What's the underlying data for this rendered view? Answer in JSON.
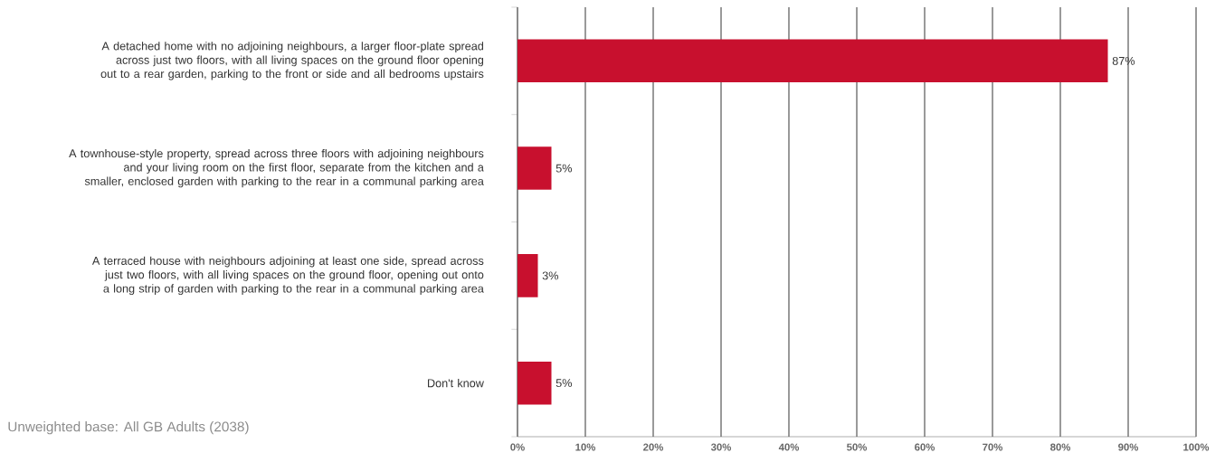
{
  "chart_data": {
    "type": "bar",
    "orientation": "horizontal",
    "categories": [
      "A detached home with no adjoining neighbours, a larger floor-plate spread across just two floors, with all living spaces on the ground floor opening out to a rear garden, parking to the front or side and all bedrooms upstairs",
      "A townhouse-style property, spread across three floors with adjoining neighbours and your living room on the first floor, separate from the kitchen and a smaller, enclosed garden with parking to the rear in a communal parking area",
      "A terraced house with neighbours adjoining at least one side, spread across just two floors, with all living spaces on the ground floor, opening out onto a long strip of garden with parking to the rear in a communal parking area",
      "Don't know"
    ],
    "values": [
      87,
      5,
      3,
      5
    ],
    "value_labels": [
      "87%",
      "5%",
      "3%",
      "5%"
    ],
    "color": "#c8102e",
    "xlim": [
      0,
      100
    ],
    "xticks": [
      {
        "value": 0,
        "label": "0%"
      },
      {
        "value": 10,
        "label": "10%"
      },
      {
        "value": 20,
        "label": "20%"
      },
      {
        "value": 30,
        "label": "30%"
      },
      {
        "value": 40,
        "label": "40%"
      },
      {
        "value": 50,
        "label": "50%"
      },
      {
        "value": 60,
        "label": "60%"
      },
      {
        "value": 70,
        "label": "70%"
      },
      {
        "value": 80,
        "label": "80%"
      },
      {
        "value": 90,
        "label": "90%"
      },
      {
        "value": 100,
        "label": "100%"
      }
    ],
    "grid": "x",
    "annotations": [
      "Unweighted base: All GB Adults (2038)"
    ]
  }
}
